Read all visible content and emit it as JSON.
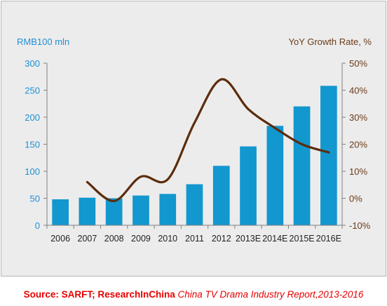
{
  "chart_data": {
    "type": "bar",
    "categories": [
      "2006",
      "2007",
      "2008",
      "2009",
      "2010",
      "2011",
      "2012",
      "2013E",
      "2014E",
      "2015E",
      "2016E"
    ],
    "series": [
      {
        "values": [
          48,
          51,
          50,
          55,
          58,
          76,
          110,
          146,
          184,
          220,
          258
        ],
        "axis": "left",
        "type": "bar"
      },
      {
        "values": [
          null,
          6,
          -1,
          8,
          7,
          28,
          44,
          33,
          26,
          20,
          17
        ],
        "axis": "right",
        "type": "line"
      }
    ],
    "ylabel": "RMB100 mln",
    "ylabel_right": "YoY Growth Rate, %",
    "ylim": [
      0,
      300
    ],
    "ylim_right": [
      -10,
      50
    ],
    "yticks": [
      "0",
      "50",
      "100",
      "150",
      "200",
      "250",
      "300"
    ],
    "yticks_right": [
      "-10%",
      "0%",
      "10%",
      "20%",
      "30%",
      "40%",
      "50%"
    ],
    "grid": false,
    "legend": "none",
    "colors": {
      "bar": "#1297cf",
      "line": "#5c2c0d",
      "left_axis_label": "#1f8fd6",
      "right_axis_label": "#6b3a1a"
    }
  },
  "source": {
    "lead": "Source: SARFT; ResearchInChina ",
    "title": "China TV Drama Industry Report,2013-2016"
  }
}
